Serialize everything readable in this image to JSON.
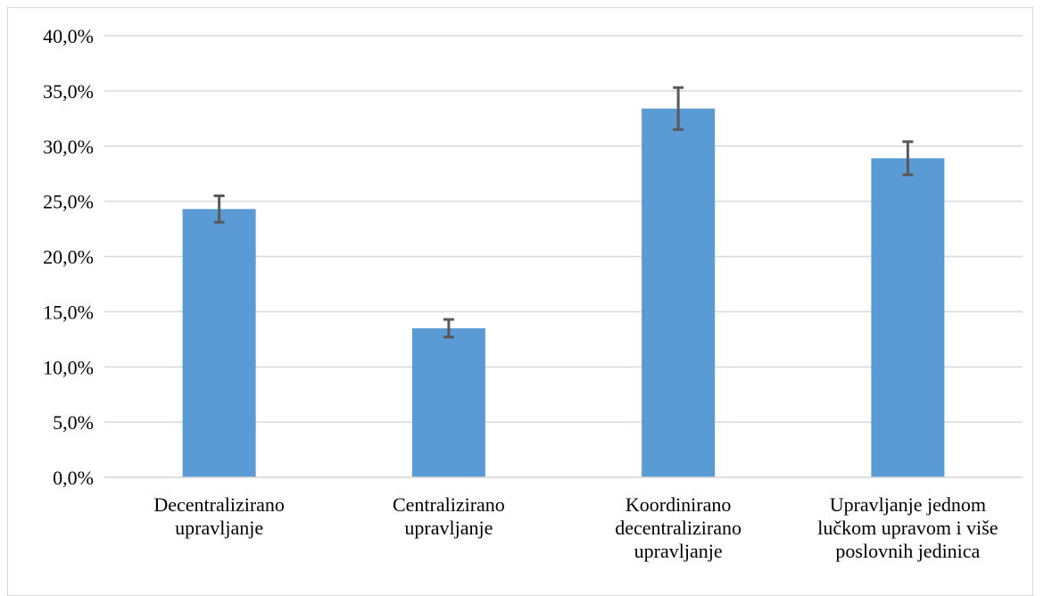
{
  "chart_data": {
    "type": "bar",
    "title": "",
    "xlabel": "",
    "ylabel": "",
    "categories": [
      [
        "Decentralizirano",
        "upravljanje"
      ],
      [
        "Centralizirano",
        "upravljanje"
      ],
      [
        "Koordinirano",
        "decentralizirano",
        "upravljanje"
      ],
      [
        "Upravljanje jednom",
        "lučkom upravom i više",
        "poslovnih jedinica"
      ]
    ],
    "values": [
      24.3,
      13.5,
      33.4,
      28.9
    ],
    "error_low": [
      23.1,
      12.7,
      31.5,
      27.4
    ],
    "error_high": [
      25.5,
      14.3,
      35.3,
      30.4
    ],
    "ylim": [
      0,
      40
    ],
    "yticks": [
      "0,0%",
      "5,0%",
      "10,0%",
      "15,0%",
      "20,0%",
      "25,0%",
      "30,0%",
      "35,0%",
      "40,0%"
    ],
    "grid": true,
    "legend": "none",
    "colors": {
      "bar": "#5b9bd5",
      "grid": "#d9d9d9",
      "error_bar": "#595959"
    }
  }
}
